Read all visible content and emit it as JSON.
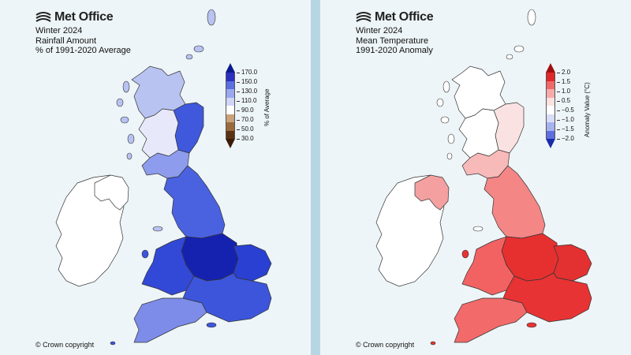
{
  "brand": "Met Office",
  "copyright": "© Crown copyright",
  "panels": {
    "rainfall": {
      "title_lines": [
        "Winter 2024",
        "Rainfall Amount",
        "% of 1991-2020 Average"
      ],
      "legend_label": "% of Average",
      "legend_ticks": [
        "170.0",
        "150.0",
        "130.0",
        "110.0",
        "90.0",
        "70.0",
        "50.0",
        "30.0"
      ],
      "legend_colors": [
        "#2c2fc0",
        "#5a6fe0",
        "#9aa8f0",
        "#d0d6f8",
        "#ffffff",
        "#c9a27a",
        "#9b6a3c",
        "#5a3214"
      ],
      "extend_colors": {
        "top": "#0a1a8a",
        "bottom": "#3a1a08"
      },
      "region_colors": {
        "scotland_north": "#b9c3f2",
        "scotland_east": "#3f58dc",
        "scotland_central": "#e7e9fb",
        "scotland_south": "#8d9cec",
        "n_england": "#4a62e0",
        "midlands": "#1522b0",
        "wales": "#3248d6",
        "south_west": "#7c8ce8",
        "south_east": "#3c55da",
        "east_anglia": "#2a40d2",
        "n_ireland": "#ffffff",
        "ireland": "#ffffff"
      }
    },
    "temperature": {
      "title_lines": [
        "Winter 2024",
        "Mean Temperature",
        "1991-2020 Anomaly"
      ],
      "legend_label": "Anomaly Value (°C)",
      "legend_ticks": [
        "2.0",
        "1.5",
        "1.0",
        "0.5",
        "−0.5",
        "−1.0",
        "−1.5",
        "−2.0"
      ],
      "legend_colors": [
        "#e0282a",
        "#f06a6a",
        "#f8aaaa",
        "#fde0e0",
        "#ffffff",
        "#d8dcf8",
        "#a6b2f0",
        "#5c6fe0"
      ],
      "extend_colors": {
        "top": "#a01010",
        "bottom": "#1a2aa8"
      },
      "region_colors": {
        "scotland_north": "#ffffff",
        "scotland_east": "#fbe2e2",
        "scotland_central": "#ffffff",
        "scotland_south": "#f8b9b9",
        "n_england": "#f48686",
        "midlands": "#e63030",
        "wales": "#f26262",
        "south_west": "#f26a6a",
        "south_east": "#e73333",
        "east_anglia": "#e33030",
        "n_ireland": "#f4a0a0",
        "ireland": "#ffffff"
      }
    }
  }
}
